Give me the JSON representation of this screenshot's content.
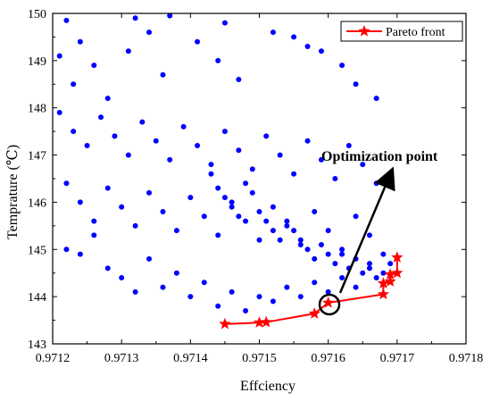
{
  "chart_data": {
    "type": "scatter",
    "xlabel": "Effciency",
    "ylabel": "Temprature (℃)",
    "xlim": [
      0.9712,
      0.9718
    ],
    "ylim": [
      143,
      150
    ],
    "xticks": [
      "0.9712",
      "0.9713",
      "0.9714",
      "0.9715",
      "0.9716",
      "0.9717",
      "0.9718"
    ],
    "yticks": [
      "143",
      "144",
      "145",
      "146",
      "147",
      "148",
      "149",
      "150"
    ],
    "grid": false,
    "legend_position": "top-right",
    "series": [
      {
        "name": "",
        "color": "#0000ff",
        "marker": "circle",
        "points": [
          [
            0.97122,
            149.85
          ],
          [
            0.97124,
            149.4
          ],
          [
            0.97121,
            149.1
          ],
          [
            0.97123,
            148.5
          ],
          [
            0.97126,
            148.9
          ],
          [
            0.97128,
            148.2
          ],
          [
            0.97132,
            149.9
          ],
          [
            0.97134,
            149.6
          ],
          [
            0.97137,
            149.95
          ],
          [
            0.97131,
            149.2
          ],
          [
            0.97136,
            148.7
          ],
          [
            0.97141,
            149.4
          ],
          [
            0.97144,
            149.0
          ],
          [
            0.97147,
            148.6
          ],
          [
            0.97145,
            149.8
          ],
          [
            0.97152,
            149.6
          ],
          [
            0.97155,
            149.5
          ],
          [
            0.97157,
            149.3
          ],
          [
            0.97159,
            149.2
          ],
          [
            0.97162,
            148.9
          ],
          [
            0.97164,
            148.5
          ],
          [
            0.97167,
            148.2
          ],
          [
            0.97121,
            147.9
          ],
          [
            0.97123,
            147.5
          ],
          [
            0.97125,
            147.2
          ],
          [
            0.97127,
            147.8
          ],
          [
            0.97129,
            147.4
          ],
          [
            0.97131,
            147.0
          ],
          [
            0.97133,
            147.7
          ],
          [
            0.97135,
            147.3
          ],
          [
            0.97137,
            146.9
          ],
          [
            0.97139,
            147.6
          ],
          [
            0.97141,
            147.2
          ],
          [
            0.97143,
            146.8
          ],
          [
            0.97145,
            147.5
          ],
          [
            0.97147,
            147.1
          ],
          [
            0.97149,
            146.7
          ],
          [
            0.97151,
            147.4
          ],
          [
            0.97153,
            147.0
          ],
          [
            0.97155,
            146.6
          ],
          [
            0.97157,
            147.3
          ],
          [
            0.97159,
            146.9
          ],
          [
            0.97161,
            146.5
          ],
          [
            0.97163,
            147.2
          ],
          [
            0.97165,
            146.8
          ],
          [
            0.97167,
            146.4
          ],
          [
            0.97122,
            146.4
          ],
          [
            0.97124,
            146.0
          ],
          [
            0.97126,
            145.6
          ],
          [
            0.97128,
            146.3
          ],
          [
            0.9713,
            145.9
          ],
          [
            0.97132,
            145.5
          ],
          [
            0.97134,
            146.2
          ],
          [
            0.97136,
            145.8
          ],
          [
            0.97138,
            145.4
          ],
          [
            0.9714,
            146.1
          ],
          [
            0.97142,
            145.7
          ],
          [
            0.97144,
            145.3
          ],
          [
            0.97146,
            146.0
          ],
          [
            0.97148,
            145.6
          ],
          [
            0.9715,
            145.2
          ],
          [
            0.97152,
            145.9
          ],
          [
            0.97154,
            145.5
          ],
          [
            0.97156,
            145.1
          ],
          [
            0.97158,
            145.8
          ],
          [
            0.9716,
            145.4
          ],
          [
            0.97162,
            145.0
          ],
          [
            0.97164,
            145.7
          ],
          [
            0.97166,
            145.3
          ],
          [
            0.97168,
            144.9
          ],
          [
            0.97122,
            145.0
          ],
          [
            0.97124,
            144.9
          ],
          [
            0.97126,
            145.3
          ],
          [
            0.97128,
            144.6
          ],
          [
            0.9713,
            144.4
          ],
          [
            0.97132,
            144.1
          ],
          [
            0.97134,
            144.8
          ],
          [
            0.97136,
            144.2
          ],
          [
            0.97138,
            144.5
          ],
          [
            0.9714,
            144.0
          ],
          [
            0.97142,
            144.3
          ],
          [
            0.97144,
            143.8
          ],
          [
            0.97146,
            144.1
          ],
          [
            0.97148,
            143.7
          ],
          [
            0.9715,
            144.0
          ],
          [
            0.97152,
            143.9
          ],
          [
            0.97154,
            144.2
          ],
          [
            0.97156,
            144.0
          ],
          [
            0.97158,
            144.3
          ],
          [
            0.9716,
            144.1
          ],
          [
            0.97162,
            144.4
          ],
          [
            0.97164,
            144.2
          ],
          [
            0.97166,
            144.6
          ],
          [
            0.97168,
            144.5
          ],
          [
            0.97169,
            144.7
          ],
          [
            0.97143,
            146.6
          ],
          [
            0.97144,
            146.3
          ],
          [
            0.97145,
            146.1
          ],
          [
            0.97146,
            145.9
          ],
          [
            0.97147,
            145.7
          ],
          [
            0.97148,
            146.4
          ],
          [
            0.97149,
            146.2
          ],
          [
            0.9715,
            145.8
          ],
          [
            0.97151,
            145.6
          ],
          [
            0.97152,
            145.4
          ],
          [
            0.97153,
            145.2
          ],
          [
            0.97154,
            145.6
          ],
          [
            0.97155,
            145.4
          ],
          [
            0.97156,
            145.2
          ],
          [
            0.97157,
            145.0
          ],
          [
            0.97158,
            144.8
          ],
          [
            0.97159,
            145.1
          ],
          [
            0.9716,
            144.9
          ],
          [
            0.97161,
            144.7
          ],
          [
            0.97162,
            144.9
          ],
          [
            0.97163,
            144.6
          ],
          [
            0.97164,
            144.8
          ],
          [
            0.97165,
            144.5
          ],
          [
            0.97166,
            144.7
          ],
          [
            0.97167,
            144.4
          ]
        ]
      },
      {
        "name": "Pareto front",
        "color": "#ff0000",
        "marker": "star",
        "x": [
          0.97145,
          0.9715,
          0.97151,
          0.97158,
          0.9716,
          0.97168,
          0.97168,
          0.97169,
          0.97169,
          0.9717,
          0.9717
        ],
        "y": [
          143.42,
          143.45,
          143.46,
          143.64,
          143.87,
          144.05,
          144.28,
          144.32,
          144.47,
          144.5,
          144.83
        ]
      }
    ],
    "annotations": [
      {
        "text": "Optimization point",
        "x": 0.9716,
        "y": 143.9
      }
    ]
  }
}
